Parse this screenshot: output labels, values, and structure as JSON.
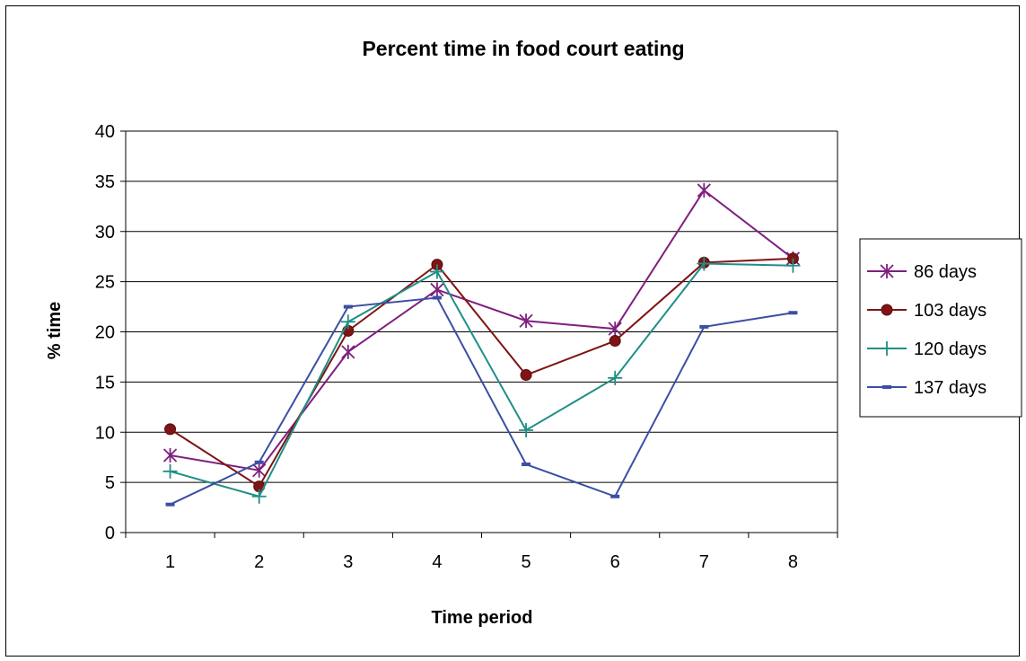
{
  "chart_data": {
    "type": "line",
    "title": "Percent time in food court eating",
    "xlabel": "Time period",
    "ylabel": "% time",
    "ylim": [
      0,
      40
    ],
    "yticks": [
      0,
      5,
      10,
      15,
      20,
      25,
      30,
      35,
      40
    ],
    "categories": [
      "1",
      "2",
      "3",
      "4",
      "5",
      "6",
      "7",
      "8"
    ],
    "grid": true,
    "legend_position": "right",
    "series": [
      {
        "name": "86 days",
        "color": "#7F1F7F",
        "marker": "asterisk",
        "values": [
          7.7,
          6.2,
          18.0,
          24.2,
          21.1,
          20.3,
          34.1,
          27.3
        ]
      },
      {
        "name": "103 days",
        "color": "#7F1414",
        "marker": "circle",
        "values": [
          10.3,
          4.6,
          20.1,
          26.7,
          15.7,
          19.1,
          26.9,
          27.3
        ]
      },
      {
        "name": "120 days",
        "color": "#1F8F86",
        "marker": "plus",
        "values": [
          6.1,
          3.6,
          21.0,
          26.0,
          10.2,
          15.4,
          26.8,
          26.6
        ]
      },
      {
        "name": "137 days",
        "color": "#3B4FA3",
        "marker": "dash",
        "values": [
          2.8,
          7.0,
          22.5,
          23.4,
          6.8,
          3.6,
          20.5,
          21.9
        ]
      }
    ]
  }
}
